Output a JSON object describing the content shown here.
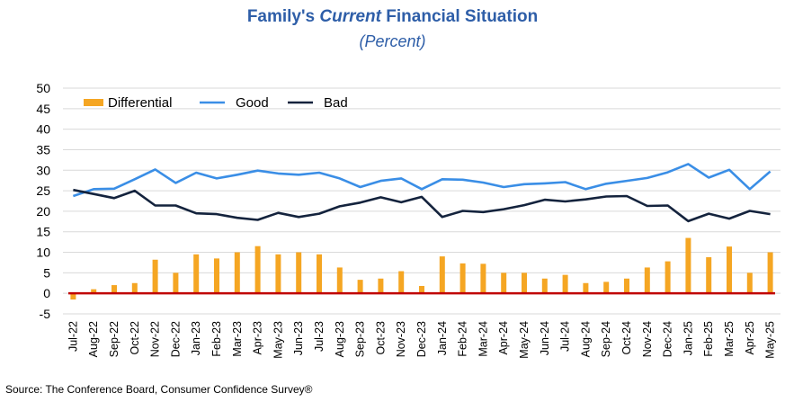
{
  "chart_data": {
    "type": "bar+line",
    "title_pre": "Family's ",
    "title_em": "Current",
    "title_post": " Financial Situation",
    "subtitle": "(Percent)",
    "source": "Source: The Conference Board, Consumer Confidence  Survey®",
    "ylim": [
      -5,
      50
    ],
    "yticks": [
      -5,
      0,
      5,
      10,
      15,
      20,
      25,
      30,
      35,
      40,
      45,
      50
    ],
    "grid": true,
    "legend_position": "top-left",
    "categories": [
      "Jul-22",
      "Aug-22",
      "Sep-22",
      "Oct-22",
      "Nov-22",
      "Dec-22",
      "Jan-23",
      "Feb-23",
      "Mar-23",
      "Apr-23",
      "May-23",
      "Jun-23",
      "Jul-23",
      "Aug-23",
      "Sep-23",
      "Oct-23",
      "Nov-23",
      "Dec-23",
      "Jan-24",
      "Feb-24",
      "Mar-24",
      "Apr-24",
      "May-24",
      "Jun-24",
      "Jul-24",
      "Aug-24",
      "Sep-24",
      "Oct-24",
      "Nov-24",
      "Dec-24",
      "Jan-25",
      "Feb-25",
      "Mar-25",
      "Apr-25",
      "May-25"
    ],
    "series": [
      {
        "name": "Differential",
        "kind": "bar",
        "color": "#f5a623",
        "values": [
          -1.5,
          1.0,
          2.0,
          2.5,
          8.2,
          5.0,
          9.5,
          8.5,
          10.0,
          11.5,
          9.5,
          10.0,
          9.5,
          6.3,
          3.3,
          3.6,
          5.4,
          1.8,
          9.0,
          7.3,
          7.2,
          5.0,
          5.0,
          3.6,
          4.5,
          2.5,
          2.8,
          3.6,
          6.3,
          7.8,
          13.5,
          8.8,
          11.4,
          5.0,
          10.0
        ]
      },
      {
        "name": "Good",
        "kind": "line",
        "color": "#3a8ee6",
        "values": [
          23.7,
          25.4,
          25.5,
          27.8,
          30.2,
          26.9,
          29.4,
          28.0,
          28.9,
          29.9,
          29.2,
          28.9,
          29.4,
          28.0,
          25.9,
          27.4,
          28.0,
          25.4,
          27.8,
          27.7,
          27.0,
          25.9,
          26.6,
          26.8,
          27.1,
          25.4,
          26.7,
          27.4,
          28.1,
          29.5,
          31.5,
          28.2,
          30.1,
          25.4,
          29.7
        ]
      },
      {
        "name": "Bad",
        "kind": "line",
        "color": "#14233d",
        "values": [
          25.2,
          24.2,
          23.2,
          25.0,
          21.4,
          21.4,
          19.5,
          19.3,
          18.4,
          17.9,
          19.6,
          18.6,
          19.4,
          21.2,
          22.1,
          23.4,
          22.2,
          23.5,
          18.6,
          20.1,
          19.8,
          20.5,
          21.5,
          22.8,
          22.4,
          22.9,
          23.6,
          23.7,
          21.3,
          21.4,
          17.6,
          19.4,
          18.2,
          20.1,
          19.3
        ]
      }
    ],
    "zero_line_color": "#c00000"
  }
}
